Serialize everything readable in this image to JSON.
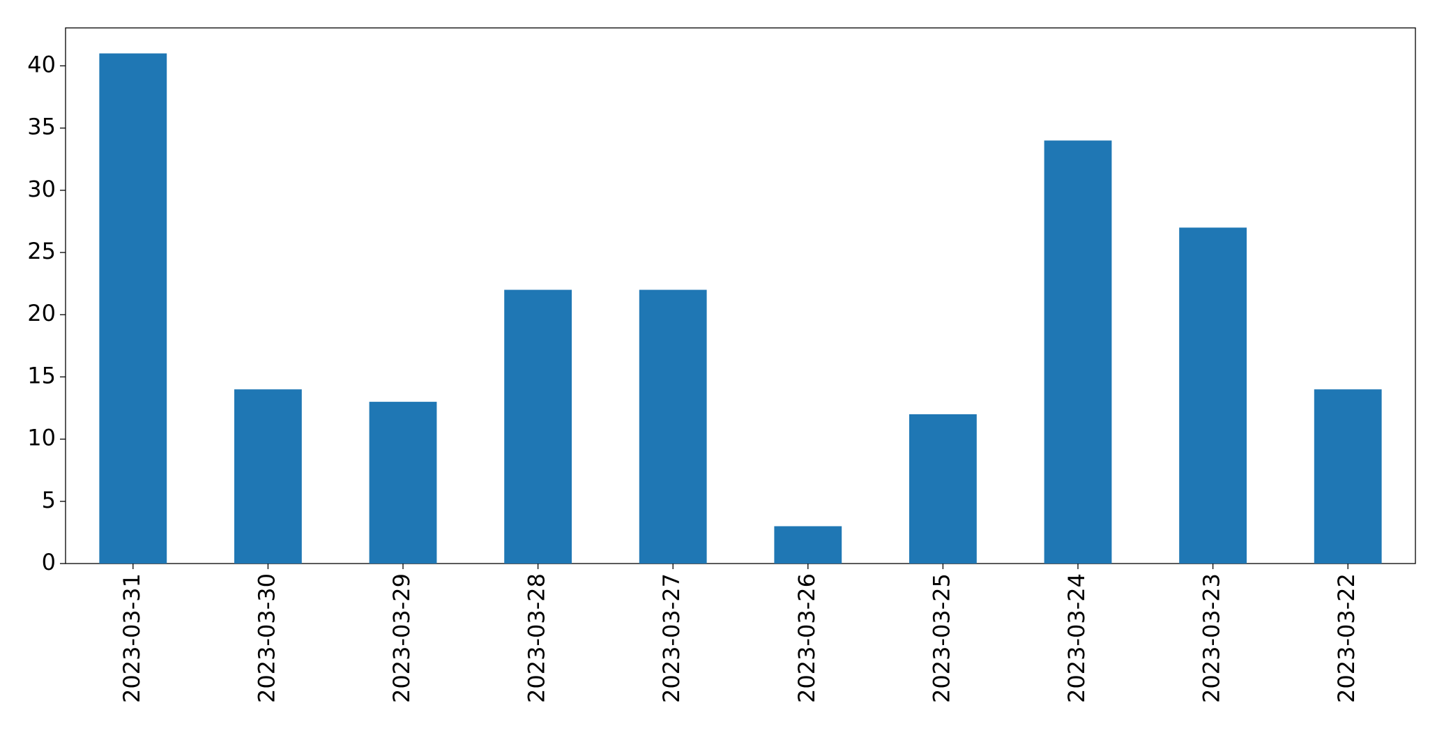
{
  "chart_data": {
    "type": "bar",
    "categories": [
      "2023-03-31",
      "2023-03-30",
      "2023-03-29",
      "2023-03-28",
      "2023-03-27",
      "2023-03-26",
      "2023-03-25",
      "2023-03-24",
      "2023-03-23",
      "2023-03-22"
    ],
    "values": [
      41,
      14,
      13,
      22,
      22,
      3,
      12,
      34,
      27,
      14
    ],
    "color": "#1f77b4",
    "ylim": [
      0,
      43.05
    ],
    "yticks": [
      0,
      5,
      10,
      15,
      20,
      25,
      30,
      35,
      40
    ],
    "grid": false
  }
}
